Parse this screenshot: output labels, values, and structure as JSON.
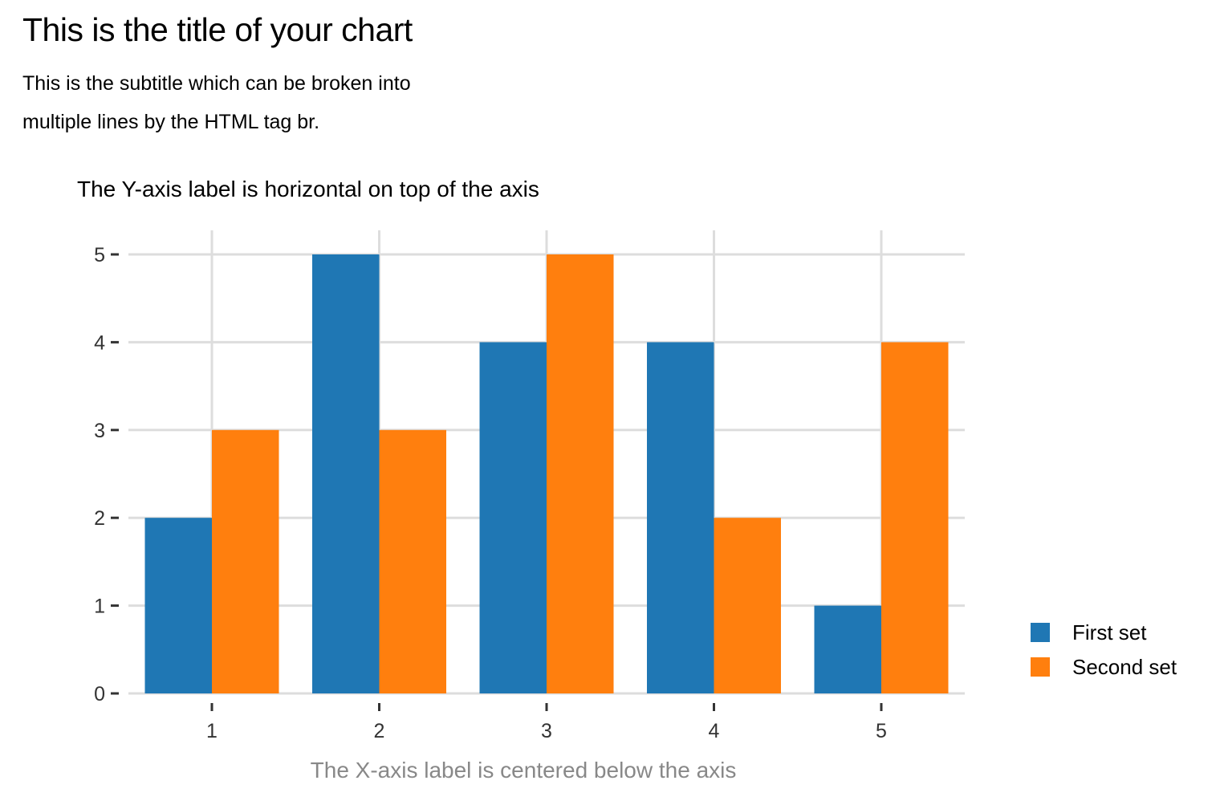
{
  "chart_data": {
    "type": "bar",
    "title": "This is the title of your chart",
    "subtitle_lines": [
      "This is the subtitle which can be broken into",
      "multiple lines by the HTML tag br."
    ],
    "ylabel": "The Y-axis label is horizontal on top of the axis",
    "xlabel": "The X-axis label is centered below the axis",
    "categories": [
      "1",
      "2",
      "3",
      "4",
      "5"
    ],
    "series": [
      {
        "name": "First set",
        "values": [
          2,
          5,
          4,
          4,
          1
        ],
        "color": "#1f77b4"
      },
      {
        "name": "Second set",
        "values": [
          3,
          3,
          5,
          2,
          4
        ],
        "color": "#ff7f0e"
      }
    ],
    "yticks": [
      "0",
      "1",
      "2",
      "3",
      "4",
      "5"
    ],
    "ylim": [
      0,
      5
    ],
    "grid": true,
    "legend_position": "bottom-right"
  }
}
